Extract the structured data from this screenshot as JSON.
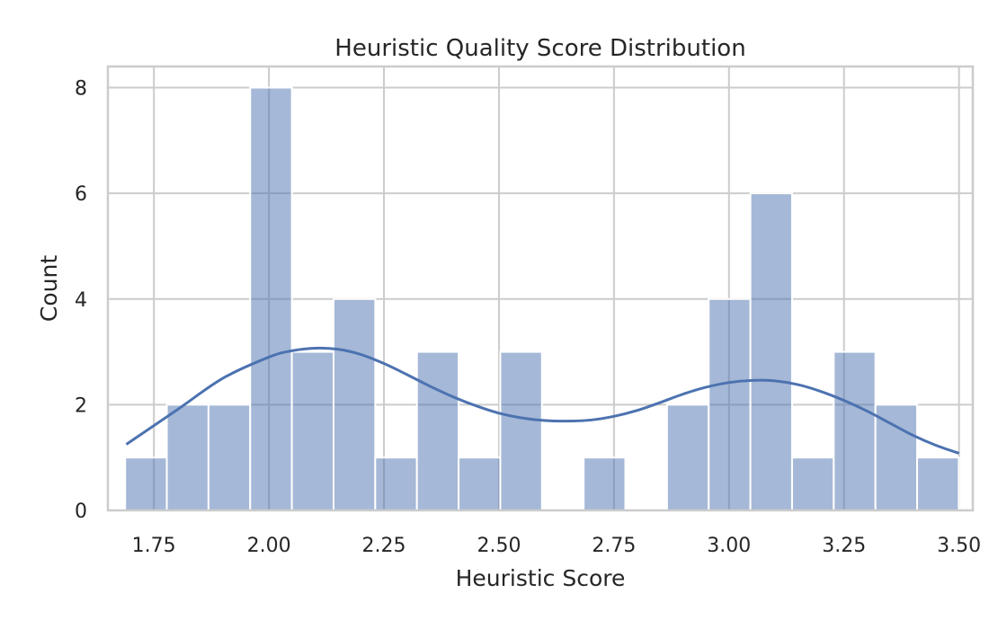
{
  "chart_data": {
    "type": "bar",
    "title": "Heuristic Quality Score Distribution",
    "xlabel": "Heuristic Score",
    "ylabel": "Count",
    "xlim": [
      1.65,
      3.53
    ],
    "ylim": [
      0,
      8.4
    ],
    "xticks": [
      1.75,
      2.0,
      2.25,
      2.5,
      2.75,
      3.0,
      3.25,
      3.5
    ],
    "xtick_labels": [
      "1.75",
      "2.00",
      "2.25",
      "2.50",
      "2.75",
      "3.00",
      "3.25",
      "3.50"
    ],
    "yticks": [
      0,
      2,
      4,
      6,
      8
    ],
    "ytick_labels": [
      "0",
      "2",
      "4",
      "6",
      "8"
    ],
    "grid": true,
    "bar_color": "#4c72b0",
    "bar_opacity": 0.5,
    "bins": {
      "start": 1.6875,
      "width": 0.0906,
      "counts": [
        1,
        2,
        2,
        8,
        3,
        4,
        1,
        3,
        1,
        3,
        0,
        1,
        0,
        2,
        4,
        6,
        1,
        3,
        2,
        1
      ]
    },
    "kde": {
      "name": "KDE",
      "color": "#4c72b0",
      "x": [
        1.69,
        1.8,
        1.9,
        2.0,
        2.05,
        2.1,
        2.15,
        2.2,
        2.25,
        2.3,
        2.35,
        2.4,
        2.45,
        2.5,
        2.55,
        2.6,
        2.65,
        2.7,
        2.75,
        2.8,
        2.85,
        2.9,
        2.95,
        3.0,
        3.05,
        3.1,
        3.15,
        3.2,
        3.25,
        3.3,
        3.35,
        3.4,
        3.45,
        3.5
      ],
      "y": [
        1.25,
        1.9,
        2.5,
        2.9,
        3.02,
        3.07,
        3.05,
        2.95,
        2.78,
        2.57,
        2.35,
        2.15,
        1.98,
        1.84,
        1.75,
        1.7,
        1.69,
        1.71,
        1.78,
        1.89,
        2.04,
        2.2,
        2.33,
        2.42,
        2.46,
        2.45,
        2.38,
        2.25,
        2.08,
        1.88,
        1.65,
        1.42,
        1.23,
        1.08
      ]
    }
  }
}
